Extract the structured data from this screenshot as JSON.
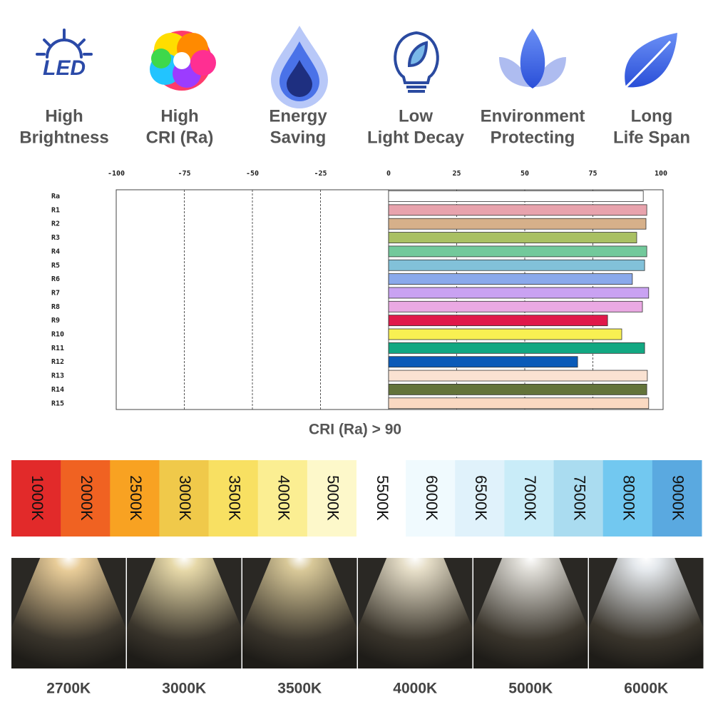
{
  "features": [
    {
      "icon_text": "LED",
      "lines": [
        "High",
        "Brightness"
      ]
    },
    {
      "lines": [
        "High",
        "CRI (Ra)"
      ]
    },
    {
      "lines": [
        "Energy",
        "Saving"
      ]
    },
    {
      "lines": [
        "Low",
        "Light Decay"
      ]
    },
    {
      "lines": [
        "Environment",
        "Protecting"
      ]
    },
    {
      "lines": [
        "Long",
        "Life Span"
      ]
    }
  ],
  "chart_data": {
    "type": "bar",
    "orientation": "horizontal",
    "categories": [
      "Ra",
      "R1",
      "R2",
      "R3",
      "R4",
      "R5",
      "R6",
      "R7",
      "R8",
      "R9",
      "R10",
      "R11",
      "R12",
      "R13",
      "R14",
      "R15"
    ],
    "values": [
      93.5,
      94.8,
      94.5,
      91.1,
      94.8,
      94,
      89.5,
      95.5,
      93.2,
      80.4,
      85.6,
      94,
      69.4,
      95,
      94.8,
      95.5
    ],
    "colors": [
      "#ffffff",
      "#e8a3ad",
      "#d6b08a",
      "#a9c063",
      "#72c99b",
      "#82c1d9",
      "#8aa9eb",
      "#c9a2f2",
      "#eaa9e3",
      "#e0194a",
      "#f8f052",
      "#12a882",
      "#0a5ab8",
      "#fae2d2",
      "#63733a",
      "#fad9c2"
    ],
    "xlim": [
      -100,
      100
    ],
    "xticks": [
      -100,
      -75,
      -50,
      -25,
      0,
      25,
      50,
      75,
      100
    ],
    "grid": true,
    "caption": "CRI (Ra) > 90"
  },
  "color_temperature": [
    {
      "label": "1000K",
      "color": "#e22a2a"
    },
    {
      "label": "2000K",
      "color": "#f06222"
    },
    {
      "label": "2500K",
      "color": "#f8a222"
    },
    {
      "label": "3000K",
      "color": "#f0c94a"
    },
    {
      "label": "3500K",
      "color": "#f8e062"
    },
    {
      "label": "4000K",
      "color": "#fbee92"
    },
    {
      "label": "5000K",
      "color": "#fdf8ca"
    },
    {
      "label": "5500K",
      "color": "#ffffff"
    },
    {
      "label": "6000K",
      "color": "#f0fafe"
    },
    {
      "label": "6500K",
      "color": "#e0f2fb"
    },
    {
      "label": "7000K",
      "color": "#c9ecf8"
    },
    {
      "label": "7500K",
      "color": "#aadcf0"
    },
    {
      "label": "8000K",
      "color": "#72c8f0"
    },
    {
      "label": "9000K",
      "color": "#5aa9e0"
    }
  ],
  "photos": [
    {
      "label": "2700K",
      "glow": "#e8cc98"
    },
    {
      "label": "3000K",
      "glow": "#e6d8a8"
    },
    {
      "label": "3500K",
      "glow": "#d8c898"
    },
    {
      "label": "4000K",
      "glow": "#e6dec8"
    },
    {
      "label": "5000K",
      "glow": "#dedcd6"
    },
    {
      "label": "6000K",
      "glow": "#e4e8ec"
    }
  ]
}
